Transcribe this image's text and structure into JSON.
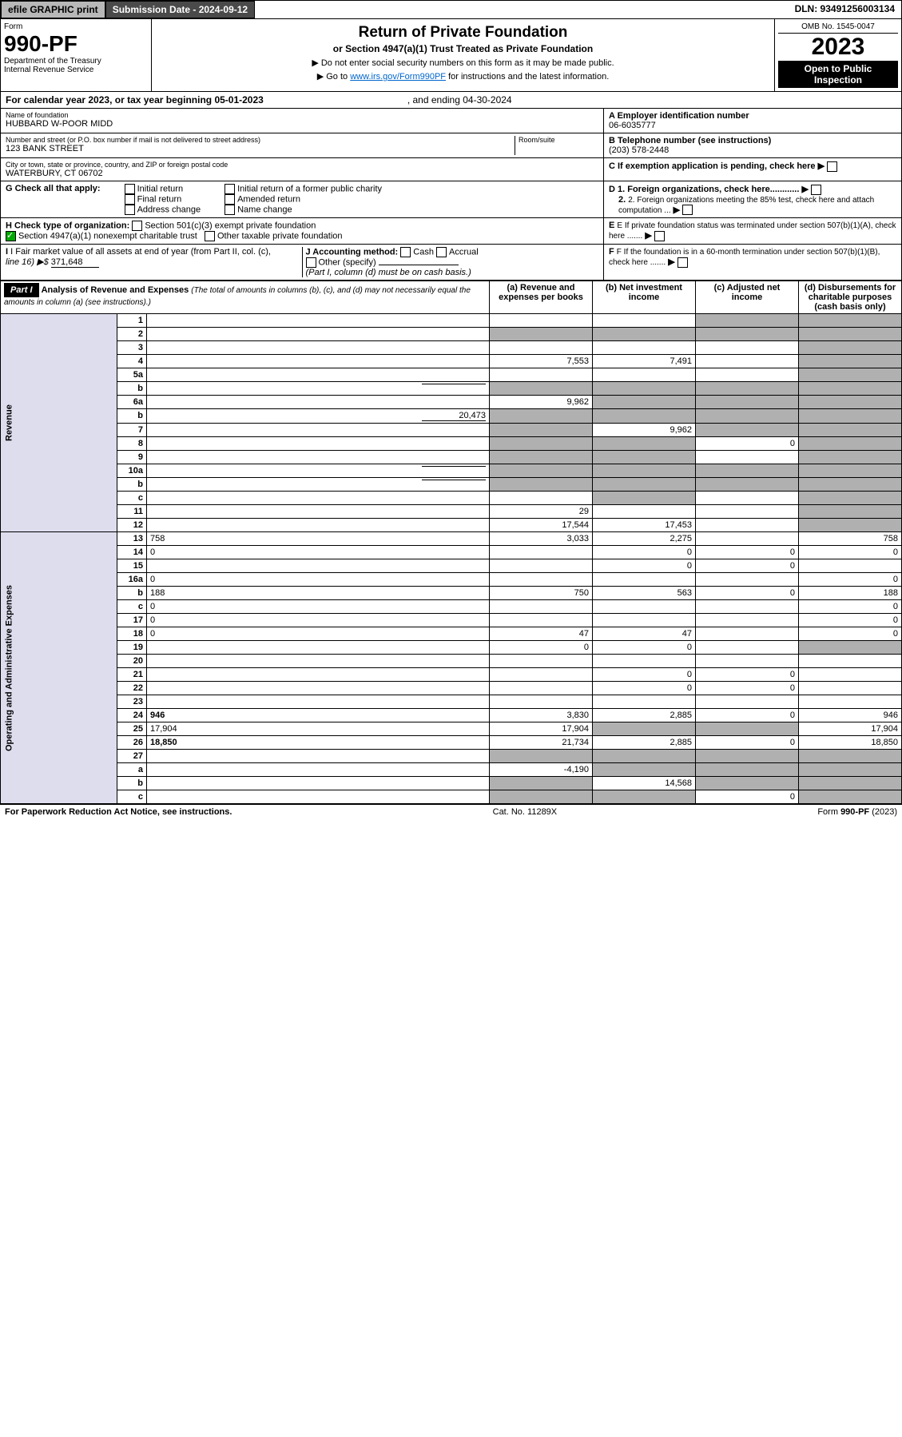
{
  "topbar": {
    "efile": "efile GRAPHIC print",
    "subdate_label": "Submission Date - 2024-09-12",
    "dln": "DLN: 93491256003134"
  },
  "hdr": {
    "form": "Form",
    "num": "990-PF",
    "dept": "Department of the Treasury",
    "irs": "Internal Revenue Service",
    "title": "Return of Private Foundation",
    "sub1": "or Section 4947(a)(1) Trust Treated as Private Foundation",
    "sub2a": "▶ Do not enter social security numbers on this form as it may be made public.",
    "sub2b": "▶ Go to ",
    "link": "www.irs.gov/Form990PF",
    "sub2c": " for instructions and the latest information.",
    "omb": "OMB No. 1545-0047",
    "year": "2023",
    "open": "Open to Public Inspection"
  },
  "cal": {
    "text": "For calendar year 2023, or tax year beginning 05-01-2023",
    "end": ", and ending 04-30-2024"
  },
  "name": {
    "label": "Name of foundation",
    "val": "HUBBARD W-POOR MIDD"
  },
  "ein": {
    "label": "A Employer identification number",
    "val": "06-6035777"
  },
  "addr": {
    "label": "Number and street (or P.O. box number if mail is not delivered to street address)",
    "val": "123 BANK STREET",
    "room": "Room/suite"
  },
  "tel": {
    "label": "B Telephone number (see instructions)",
    "val": "(203) 578-2448"
  },
  "city": {
    "label": "City or town, state or province, country, and ZIP or foreign postal code",
    "val": "WATERBURY, CT  06702"
  },
  "c": {
    "label": "C If exemption application is pending, check here"
  },
  "g": {
    "label": "G Check all that apply:",
    "opts": [
      "Initial return",
      "Final return",
      "Address change",
      "Initial return of a former public charity",
      "Amended return",
      "Name change"
    ]
  },
  "d": {
    "d1": "D 1. Foreign organizations, check here............",
    "d2": "2. Foreign organizations meeting the 85% test, check here and attach computation ..."
  },
  "h": {
    "label": "H Check type of organization:",
    "o1": "Section 501(c)(3) exempt private foundation",
    "o2": "Section 4947(a)(1) nonexempt charitable trust",
    "o3": "Other taxable private foundation"
  },
  "e": {
    "label": "E If private foundation status was terminated under section 507(b)(1)(A), check here ......."
  },
  "i": {
    "label": "I Fair market value of all assets at end of year (from Part II, col. (c),",
    "line": "line 16) ▶$",
    "val": "371,648"
  },
  "j": {
    "label": "J Accounting method:",
    "cash": "Cash",
    "accrual": "Accrual",
    "other": "Other (specify)",
    "note": "(Part I, column (d) must be on cash basis.)"
  },
  "f": {
    "label": "F If the foundation is in a 60-month termination under section 507(b)(1)(B), check here ......."
  },
  "part1": {
    "label": "Part I",
    "title": "Analysis of Revenue and Expenses",
    "note": "(The total of amounts in columns (b), (c), and (d) may not necessarily equal the amounts in column (a) (see instructions).)",
    "ca": "(a) Revenue and expenses per books",
    "cb": "(b) Net investment income",
    "cc": "(c) Adjusted net income",
    "cd": "(d) Disbursements for charitable purposes (cash basis only)"
  },
  "sections": {
    "rev": "Revenue",
    "exp": "Operating and Administrative Expenses"
  },
  "rows": [
    {
      "n": "1",
      "d": "",
      "a": "",
      "b": "",
      "c": "",
      "grey": [
        "c",
        "d"
      ]
    },
    {
      "n": "2",
      "d": "",
      "a": "",
      "b": "",
      "c": "",
      "grey": [
        "a",
        "b",
        "c",
        "d"
      ],
      "bold_not": true
    },
    {
      "n": "3",
      "d": "",
      "a": "",
      "b": "",
      "c": "",
      "grey": [
        "d"
      ]
    },
    {
      "n": "4",
      "d": "",
      "a": "7,553",
      "b": "7,491",
      "c": "",
      "grey": [
        "d"
      ]
    },
    {
      "n": "5a",
      "d": "",
      "a": "",
      "b": "",
      "c": "",
      "grey": [
        "d"
      ]
    },
    {
      "n": "b",
      "d": "",
      "a": "",
      "b": "",
      "c": "",
      "grey": [
        "a",
        "b",
        "c",
        "d"
      ],
      "inline": true
    },
    {
      "n": "6a",
      "d": "",
      "a": "9,962",
      "b": "",
      "c": "",
      "grey": [
        "b",
        "c",
        "d"
      ]
    },
    {
      "n": "b",
      "d": "",
      "a": "",
      "b": "",
      "c": "",
      "grey": [
        "a",
        "b",
        "c",
        "d"
      ],
      "inline_val": "20,473"
    },
    {
      "n": "7",
      "d": "",
      "a": "",
      "b": "9,962",
      "c": "",
      "grey": [
        "a",
        "c",
        "d"
      ]
    },
    {
      "n": "8",
      "d": "",
      "a": "",
      "b": "",
      "c": "0",
      "grey": [
        "a",
        "b",
        "d"
      ]
    },
    {
      "n": "9",
      "d": "",
      "a": "",
      "b": "",
      "c": "",
      "grey": [
        "a",
        "b",
        "d"
      ]
    },
    {
      "n": "10a",
      "d": "",
      "a": "",
      "b": "",
      "c": "",
      "grey": [
        "a",
        "b",
        "c",
        "d"
      ],
      "inline": true
    },
    {
      "n": "b",
      "d": "",
      "a": "",
      "b": "",
      "c": "",
      "grey": [
        "a",
        "b",
        "c",
        "d"
      ],
      "inline": true
    },
    {
      "n": "c",
      "d": "",
      "a": "",
      "b": "",
      "c": "",
      "grey": [
        "b",
        "d"
      ]
    },
    {
      "n": "11",
      "d": "",
      "a": "29",
      "b": "",
      "c": "",
      "grey": [
        "d"
      ]
    },
    {
      "n": "12",
      "d": "",
      "a": "17,544",
      "b": "17,453",
      "c": "",
      "grey": [
        "d"
      ],
      "bold": true
    },
    {
      "n": "13",
      "d": "758",
      "a": "3,033",
      "b": "2,275",
      "c": ""
    },
    {
      "n": "14",
      "d": "0",
      "a": "",
      "b": "0",
      "c": "0"
    },
    {
      "n": "15",
      "d": "",
      "a": "",
      "b": "0",
      "c": "0"
    },
    {
      "n": "16a",
      "d": "0",
      "a": "",
      "b": "",
      "c": ""
    },
    {
      "n": "b",
      "d": "188",
      "a": "750",
      "b": "563",
      "c": "0"
    },
    {
      "n": "c",
      "d": "0",
      "a": "",
      "b": "",
      "c": ""
    },
    {
      "n": "17",
      "d": "0",
      "a": "",
      "b": "",
      "c": ""
    },
    {
      "n": "18",
      "d": "0",
      "a": "47",
      "b": "47",
      "c": ""
    },
    {
      "n": "19",
      "d": "",
      "a": "0",
      "b": "0",
      "c": "",
      "grey": [
        "d"
      ]
    },
    {
      "n": "20",
      "d": "",
      "a": "",
      "b": "",
      "c": ""
    },
    {
      "n": "21",
      "d": "",
      "a": "",
      "b": "0",
      "c": "0"
    },
    {
      "n": "22",
      "d": "",
      "a": "",
      "b": "0",
      "c": "0"
    },
    {
      "n": "23",
      "d": "",
      "a": "",
      "b": "",
      "c": ""
    },
    {
      "n": "24",
      "d": "946",
      "a": "3,830",
      "b": "2,885",
      "c": "0",
      "bold": true
    },
    {
      "n": "25",
      "d": "17,904",
      "a": "17,904",
      "b": "",
      "c": "",
      "grey": [
        "b",
        "c"
      ]
    },
    {
      "n": "26",
      "d": "18,850",
      "a": "21,734",
      "b": "2,885",
      "c": "0",
      "bold": true
    },
    {
      "n": "27",
      "d": "",
      "a": "",
      "b": "",
      "c": "",
      "grey": [
        "a",
        "b",
        "c",
        "d"
      ]
    },
    {
      "n": "a",
      "d": "",
      "a": "-4,190",
      "b": "",
      "c": "",
      "grey": [
        "b",
        "c",
        "d"
      ],
      "bold": true
    },
    {
      "n": "b",
      "d": "",
      "a": "",
      "b": "14,568",
      "c": "",
      "grey": [
        "a",
        "c",
        "d"
      ],
      "bold": true
    },
    {
      "n": "c",
      "d": "",
      "a": "",
      "b": "",
      "c": "0",
      "grey": [
        "a",
        "b",
        "d"
      ],
      "bold": true
    }
  ],
  "footer": {
    "l": "For Paperwork Reduction Act Notice, see instructions.",
    "c": "Cat. No. 11289X",
    "r": "Form 990-PF (2023)"
  }
}
